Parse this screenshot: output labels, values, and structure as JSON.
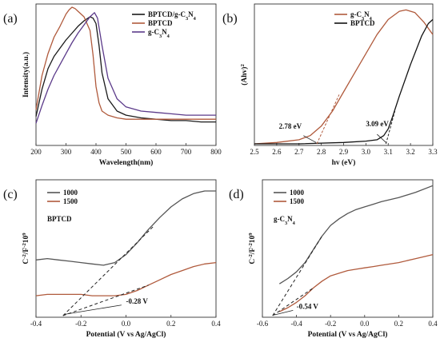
{
  "chart_data": [
    {
      "type": "line",
      "panel_label": "(a)",
      "xlabel": "Wavelength(nm)",
      "ylabel": "Intensity(a.u.)",
      "xlim": [
        200,
        800
      ],
      "xticks": [
        200,
        300,
        400,
        500,
        600,
        700,
        800
      ],
      "legend_position": "top-right",
      "series": [
        {
          "name": "BPTCD/g-C3N4",
          "name_main": "BPTCD/g-C",
          "name_sub": "3",
          "name_main2": "N",
          "name_sub2": "4",
          "color": "#1a1a1a",
          "x": [
            200,
            220,
            240,
            260,
            280,
            300,
            320,
            340,
            360,
            380,
            390,
            400,
            410,
            420,
            440,
            470,
            500,
            550,
            600,
            650,
            700,
            750,
            800
          ],
          "y": [
            0.2,
            0.4,
            0.55,
            0.64,
            0.7,
            0.76,
            0.81,
            0.86,
            0.9,
            0.93,
            0.92,
            0.88,
            0.72,
            0.52,
            0.33,
            0.24,
            0.21,
            0.19,
            0.18,
            0.17,
            0.17,
            0.16,
            0.16
          ]
        },
        {
          "name": "BPTCD",
          "color": "#b05a3c",
          "x": [
            200,
            220,
            240,
            260,
            280,
            300,
            310,
            320,
            330,
            340,
            360,
            380,
            390,
            400,
            410,
            420,
            440,
            470,
            500,
            550,
            600,
            650,
            700,
            750,
            800
          ],
          "y": [
            0.25,
            0.5,
            0.66,
            0.78,
            0.86,
            0.95,
            0.98,
            1.0,
            0.99,
            0.97,
            0.93,
            0.83,
            0.65,
            0.42,
            0.3,
            0.24,
            0.21,
            0.19,
            0.18,
            0.18,
            0.18,
            0.18,
            0.18,
            0.18,
            0.18
          ]
        },
        {
          "name": "g-C3N4",
          "name_main": "g-C",
          "name_sub": "3",
          "name_main2": "N",
          "name_sub2": "4",
          "color": "#5b3a8a",
          "x": [
            200,
            220,
            240,
            260,
            280,
            300,
            320,
            340,
            360,
            380,
            395,
            405,
            420,
            440,
            470,
            500,
            550,
            600,
            650,
            700,
            750,
            800
          ],
          "y": [
            0.15,
            0.28,
            0.4,
            0.5,
            0.58,
            0.66,
            0.74,
            0.81,
            0.87,
            0.93,
            0.96,
            0.92,
            0.72,
            0.48,
            0.33,
            0.27,
            0.24,
            0.23,
            0.22,
            0.21,
            0.21,
            0.21
          ]
        }
      ]
    },
    {
      "type": "line",
      "panel_label": "(b)",
      "xlabel": "hv (eV)",
      "ylabel_main": "(Ahv)",
      "ylabel_sup": "2",
      "xlim": [
        2.5,
        3.3
      ],
      "xticks": [
        2.5,
        2.6,
        2.7,
        2.8,
        2.9,
        3.0,
        3.1,
        3.2,
        3.3
      ],
      "legend_position": "top-left",
      "series": [
        {
          "name": "g-C3N4",
          "name_main": "g-C",
          "name_sub": "3",
          "name_main2": "N",
          "name_sub2": "4",
          "color": "#b05a3c",
          "x": [
            2.5,
            2.6,
            2.7,
            2.75,
            2.8,
            2.85,
            2.9,
            2.95,
            3.0,
            3.05,
            3.1,
            3.15,
            3.18,
            3.22,
            3.26,
            3.3
          ],
          "y": [
            0.0,
            0.01,
            0.03,
            0.06,
            0.13,
            0.24,
            0.38,
            0.52,
            0.66,
            0.8,
            0.91,
            0.97,
            0.98,
            0.96,
            0.89,
            0.8
          ]
        },
        {
          "name": "BPTCD",
          "color": "#111111",
          "x": [
            2.5,
            2.7,
            2.9,
            3.0,
            3.05,
            3.08,
            3.1,
            3.12,
            3.15,
            3.2,
            3.25,
            3.28,
            3.3
          ],
          "y": [
            0.0,
            0.0,
            0.01,
            0.02,
            0.03,
            0.06,
            0.11,
            0.2,
            0.35,
            0.58,
            0.79,
            0.88,
            0.91
          ]
        }
      ],
      "annotations": [
        {
          "text": "2.78 eV",
          "x": 2.78
        },
        {
          "text": "3.09 eV",
          "x": 3.09
        }
      ]
    },
    {
      "type": "line",
      "panel_label": "(c)",
      "inner_label": "BPTCD",
      "xlabel": "Potential (V vs Ag/AgCl)",
      "ylabel_main": "C",
      "ylabel_sup1": "-2",
      "ylabel_mid": "/F",
      "ylabel_sup2": "-2",
      "ylabel_end": "10",
      "ylabel_sup3": "9",
      "xlim": [
        -0.4,
        0.4
      ],
      "xticks": [
        -0.4,
        -0.2,
        0.0,
        0.2,
        0.4
      ],
      "legend_position": "top-left",
      "series": [
        {
          "name": "1000",
          "color": "#555555",
          "x": [
            -0.4,
            -0.35,
            -0.3,
            -0.25,
            -0.2,
            -0.15,
            -0.1,
            -0.05,
            0.0,
            0.05,
            0.1,
            0.15,
            0.2,
            0.25,
            0.3,
            0.35,
            0.4
          ],
          "y": [
            0.42,
            0.43,
            0.42,
            0.41,
            0.4,
            0.39,
            0.38,
            0.4,
            0.46,
            0.55,
            0.65,
            0.74,
            0.82,
            0.88,
            0.92,
            0.94,
            0.94
          ]
        },
        {
          "name": "1500",
          "color": "#b05a3c",
          "x": [
            -0.4,
            -0.35,
            -0.3,
            -0.25,
            -0.2,
            -0.15,
            -0.1,
            -0.05,
            0.0,
            0.05,
            0.1,
            0.15,
            0.2,
            0.25,
            0.3,
            0.35,
            0.4
          ],
          "y": [
            0.15,
            0.16,
            0.16,
            0.16,
            0.16,
            0.15,
            0.15,
            0.15,
            0.16,
            0.19,
            0.23,
            0.27,
            0.31,
            0.34,
            0.37,
            0.39,
            0.4
          ]
        }
      ],
      "annotations": [
        {
          "text": "-0.28 V",
          "x": -0.28
        }
      ]
    },
    {
      "type": "line",
      "panel_label": "(d)",
      "inner_label_main": "g-C",
      "inner_label_sub": "3",
      "inner_label_main2": "N",
      "inner_label_sub2": "4",
      "xlabel": "Potential (V vs Ag/AgCl)",
      "ylabel_main": "C",
      "ylabel_sup1": "-2",
      "ylabel_mid": "/F",
      "ylabel_sup2": "-2",
      "ylabel_end": "10",
      "ylabel_sup3": "9",
      "xlim": [
        -0.6,
        0.4
      ],
      "xticks": [
        -0.6,
        -0.4,
        -0.2,
        0.0,
        0.2,
        0.4
      ],
      "legend_position": "top-left",
      "series": [
        {
          "name": "1000",
          "color": "#555555",
          "x": [
            -0.5,
            -0.45,
            -0.4,
            -0.35,
            -0.3,
            -0.25,
            -0.2,
            -0.15,
            -0.1,
            -0.05,
            0.0,
            0.05,
            0.1,
            0.2,
            0.3,
            0.4
          ],
          "y": [
            0.24,
            0.28,
            0.33,
            0.4,
            0.5,
            0.6,
            0.68,
            0.73,
            0.77,
            0.8,
            0.82,
            0.84,
            0.86,
            0.89,
            0.93,
            0.98
          ]
        },
        {
          "name": "1500",
          "color": "#b05a3c",
          "x": [
            -0.5,
            -0.45,
            -0.4,
            -0.35,
            -0.3,
            -0.25,
            -0.2,
            -0.15,
            -0.1,
            -0.05,
            0.0,
            0.05,
            0.1,
            0.2,
            0.3,
            0.4
          ],
          "y": [
            0.03,
            0.06,
            0.1,
            0.15,
            0.21,
            0.26,
            0.3,
            0.32,
            0.34,
            0.35,
            0.36,
            0.37,
            0.38,
            0.4,
            0.43,
            0.46
          ]
        }
      ],
      "annotations": [
        {
          "text": "-0.54 V",
          "x": -0.54
        }
      ]
    }
  ]
}
